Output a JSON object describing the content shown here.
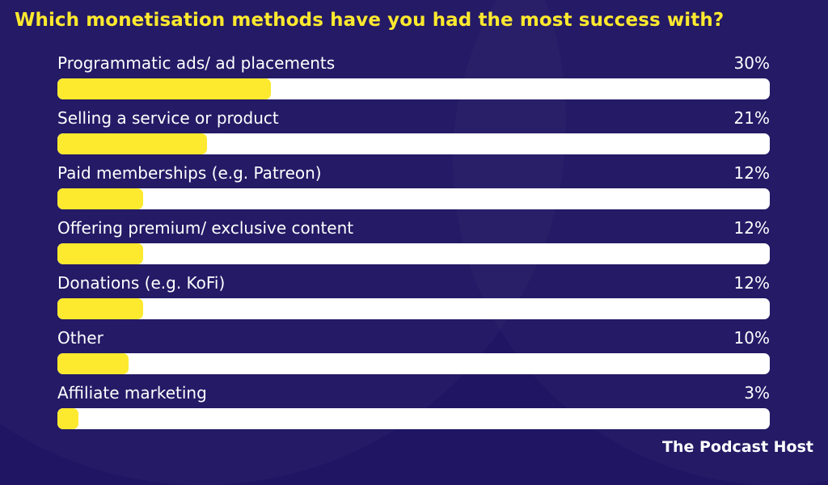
{
  "title": "Which monetisation methods have you had the most success with?",
  "brand": "The Podcast Host",
  "colors": {
    "background": "#1f1563",
    "accent": "#fde92e",
    "track": "#ffffff",
    "text": "#ffffff"
  },
  "rows": [
    {
      "label": "Programmatic ads/ ad placements",
      "value": "30%",
      "pct": 30
    },
    {
      "label": "Selling a service or product",
      "value": "21%",
      "pct": 21
    },
    {
      "label": "Paid memberships (e.g. Patreon)",
      "value": "12%",
      "pct": 12
    },
    {
      "label": "Offering premium/ exclusive content",
      "value": "12%",
      "pct": 12
    },
    {
      "label": "Donations (e.g. KoFi)",
      "value": "12%",
      "pct": 12
    },
    {
      "label": "Other",
      "value": "10%",
      "pct": 10
    },
    {
      "label": "Affiliate marketing",
      "value": "3%",
      "pct": 3
    }
  ],
  "chart_data": {
    "type": "bar",
    "orientation": "horizontal",
    "title": "Which monetisation methods have you had the most success with?",
    "categories": [
      "Programmatic ads/ ad placements",
      "Selling a service or product",
      "Paid memberships (e.g. Patreon)",
      "Offering premium/ exclusive content",
      "Donations (e.g. KoFi)",
      "Other",
      "Affiliate marketing"
    ],
    "values": [
      30,
      21,
      12,
      12,
      12,
      10,
      3
    ],
    "unit": "%",
    "xlabel": "",
    "ylabel": "",
    "xlim": [
      0,
      100
    ],
    "grid": false,
    "legend": null,
    "annotations": [
      "The Podcast Host"
    ]
  }
}
